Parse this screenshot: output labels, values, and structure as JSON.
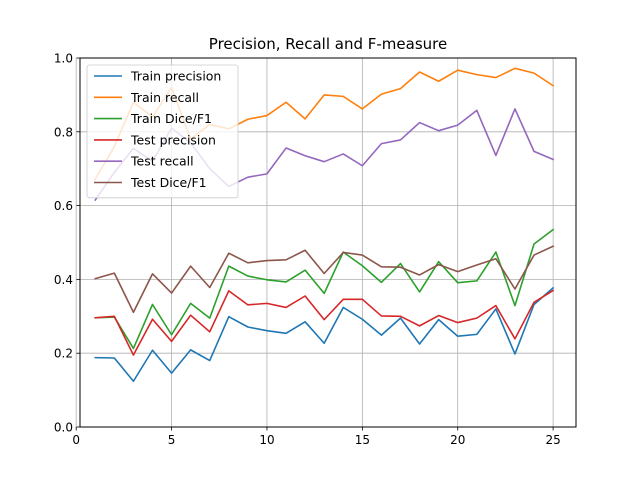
{
  "chart_data": {
    "type": "line",
    "title": "Precision, Recall and F-measure",
    "xlabel": "",
    "ylabel": "",
    "xlim": [
      0.2,
      26.2
    ],
    "ylim": [
      0.0,
      1.0
    ],
    "grid": true,
    "legend_position": "top-left",
    "x_ticks": [
      0,
      5,
      10,
      15,
      20,
      25
    ],
    "x_tick_labels": [
      "0",
      "5",
      "10",
      "15",
      "20",
      "25"
    ],
    "y_ticks": [
      0.0,
      0.2,
      0.4,
      0.6,
      0.8,
      1.0
    ],
    "y_tick_labels": [
      "0.0",
      "0.2",
      "0.4",
      "0.6",
      "0.8",
      "1.0"
    ],
    "x": [
      1,
      2,
      3,
      4,
      5,
      6,
      7,
      8,
      9,
      10,
      11,
      12,
      13,
      14,
      15,
      16,
      17,
      18,
      19,
      20,
      21,
      22,
      23,
      24,
      25
    ],
    "series": [
      {
        "name": "Train precision",
        "color": "#1f77b4",
        "values": [
          0.188,
          0.187,
          0.124,
          0.208,
          0.146,
          0.209,
          0.18,
          0.299,
          0.271,
          0.261,
          0.254,
          0.285,
          0.227,
          0.324,
          0.292,
          0.249,
          0.295,
          0.225,
          0.291,
          0.246,
          0.251,
          0.32,
          0.198,
          0.332,
          0.377
        ]
      },
      {
        "name": "Train recall",
        "color": "#ff7f0e",
        "values": [
          0.672,
          0.76,
          0.88,
          0.84,
          0.92,
          0.78,
          0.82,
          0.808,
          0.834,
          0.844,
          0.88,
          0.835,
          0.9,
          0.896,
          0.862,
          0.902,
          0.917,
          0.962,
          0.937,
          0.967,
          0.955,
          0.947,
          0.972,
          0.959,
          0.925
        ]
      },
      {
        "name": "Train Dice/F1",
        "color": "#2ca02c",
        "values": [
          0.296,
          0.298,
          0.213,
          0.332,
          0.25,
          0.335,
          0.295,
          0.436,
          0.409,
          0.399,
          0.393,
          0.425,
          0.362,
          0.474,
          0.437,
          0.392,
          0.443,
          0.366,
          0.448,
          0.391,
          0.396,
          0.474,
          0.329,
          0.496,
          0.535
        ]
      },
      {
        "name": "Test precision",
        "color": "#d62728",
        "values": [
          0.296,
          0.3,
          0.195,
          0.292,
          0.232,
          0.303,
          0.258,
          0.369,
          0.331,
          0.335,
          0.324,
          0.355,
          0.291,
          0.346,
          0.346,
          0.301,
          0.3,
          0.274,
          0.302,
          0.283,
          0.295,
          0.329,
          0.239,
          0.338,
          0.37
        ]
      },
      {
        "name": "Test recall",
        "color": "#9467bd",
        "values": [
          0.615,
          0.69,
          0.755,
          0.72,
          0.81,
          0.77,
          0.7,
          0.652,
          0.677,
          0.686,
          0.756,
          0.735,
          0.719,
          0.74,
          0.708,
          0.768,
          0.778,
          0.825,
          0.803,
          0.818,
          0.858,
          0.736,
          0.862,
          0.747,
          0.725
        ]
      },
      {
        "name": "Test Dice/F1",
        "color": "#8c564b",
        "values": [
          0.402,
          0.417,
          0.311,
          0.415,
          0.363,
          0.436,
          0.378,
          0.471,
          0.445,
          0.451,
          0.453,
          0.479,
          0.416,
          0.473,
          0.466,
          0.434,
          0.433,
          0.412,
          0.44,
          0.421,
          0.439,
          0.456,
          0.374,
          0.466,
          0.49
        ]
      }
    ]
  }
}
